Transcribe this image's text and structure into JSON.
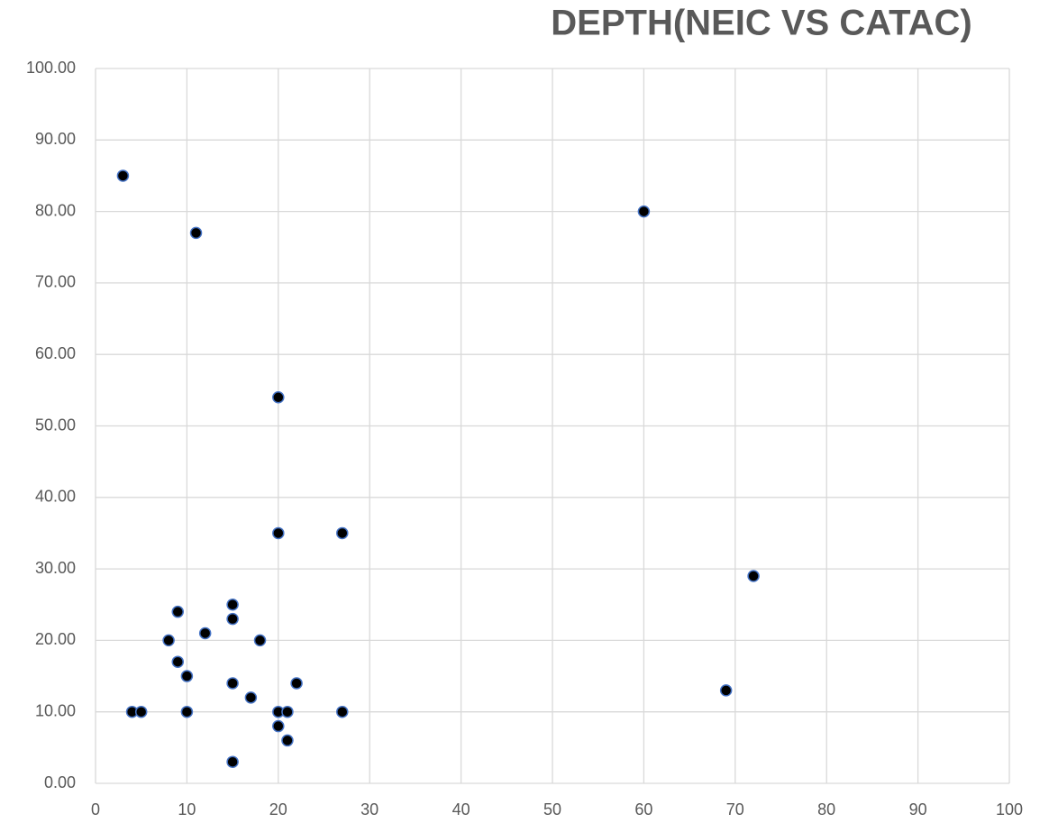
{
  "chart_data": {
    "type": "scatter",
    "title": "DEPTH(NEIC VS CATAC)",
    "x": [
      3,
      11,
      60,
      20,
      20,
      27,
      72,
      15,
      9,
      15,
      12,
      8,
      18,
      9,
      10,
      15,
      22,
      69,
      17,
      4,
      5,
      10,
      20,
      21,
      27,
      20,
      21,
      15
    ],
    "values": [
      85,
      77,
      80,
      54,
      35,
      35,
      29,
      25,
      24,
      23,
      21,
      20,
      20,
      17,
      15,
      14,
      14,
      13,
      12,
      10,
      10,
      10,
      10,
      10,
      10,
      8,
      6,
      3
    ],
    "color": "#000000",
    "marker_edge": "#4472c4",
    "xlim": [
      0,
      100
    ],
    "xticks": [
      0,
      10,
      20,
      30,
      40,
      50,
      60,
      70,
      80,
      90,
      100
    ],
    "ylim": [
      0,
      100
    ],
    "yticks": [
      {
        "value": 0,
        "label": "0.00"
      },
      {
        "value": 10,
        "label": "10.00"
      },
      {
        "value": 20,
        "label": "20.00"
      },
      {
        "value": 30,
        "label": "30.00"
      },
      {
        "value": 40,
        "label": "40.00"
      },
      {
        "value": 50,
        "label": "50.00"
      },
      {
        "value": 60,
        "label": "60.00"
      },
      {
        "value": 70,
        "label": "70.00"
      },
      {
        "value": 80,
        "label": "80.00"
      },
      {
        "value": 90,
        "label": "90.00"
      },
      {
        "value": 100,
        "label": "100.00"
      }
    ],
    "grid": true
  }
}
